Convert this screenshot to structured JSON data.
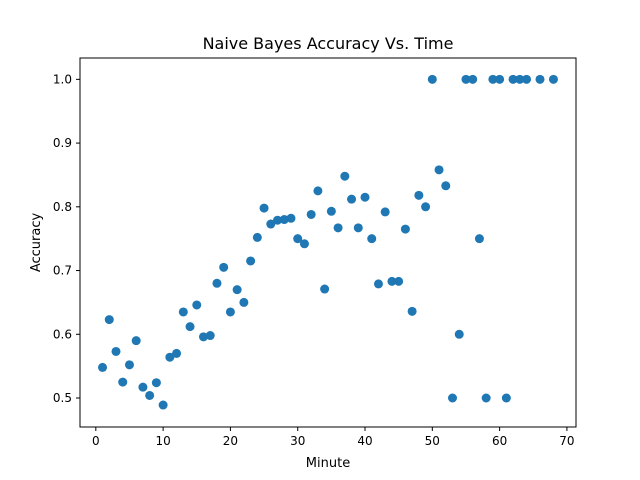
{
  "chart_data": {
    "type": "scatter",
    "title": "Naive Bayes Accuracy Vs. Time",
    "xlabel": "Minute",
    "ylabel": "Accuracy",
    "xlim": [
      -2.35,
      71.35
    ],
    "ylim": [
      0.4545,
      1.0335
    ],
    "xticks": [
      0,
      10,
      20,
      30,
      40,
      50,
      60,
      70
    ],
    "xtick_labels": [
      "0",
      "10",
      "20",
      "30",
      "40",
      "50",
      "60",
      "70"
    ],
    "yticks": [
      0.5,
      0.6,
      0.7,
      0.8,
      0.9,
      1.0
    ],
    "ytick_labels": [
      "0.5",
      "0.6",
      "0.7",
      "0.8",
      "0.9",
      "1.0"
    ],
    "grid": false,
    "marker_color": "#1f77b4",
    "series": [
      {
        "name": "accuracy",
        "points": [
          [
            1,
            0.548
          ],
          [
            2,
            0.623
          ],
          [
            3,
            0.573
          ],
          [
            4,
            0.525
          ],
          [
            5,
            0.552
          ],
          [
            6,
            0.59
          ],
          [
            7,
            0.517
          ],
          [
            8,
            0.504
          ],
          [
            9,
            0.524
          ],
          [
            10,
            0.489
          ],
          [
            11,
            0.564
          ],
          [
            12,
            0.57
          ],
          [
            13,
            0.635
          ],
          [
            14,
            0.612
          ],
          [
            15,
            0.646
          ],
          [
            16,
            0.596
          ],
          [
            17,
            0.598
          ],
          [
            18,
            0.68
          ],
          [
            19,
            0.705
          ],
          [
            20,
            0.635
          ],
          [
            21,
            0.67
          ],
          [
            22,
            0.65
          ],
          [
            23,
            0.715
          ],
          [
            24,
            0.752
          ],
          [
            25,
            0.798
          ],
          [
            26,
            0.773
          ],
          [
            27,
            0.779
          ],
          [
            28,
            0.78
          ],
          [
            29,
            0.782
          ],
          [
            30,
            0.75
          ],
          [
            31,
            0.742
          ],
          [
            32,
            0.788
          ],
          [
            33,
            0.825
          ],
          [
            34,
            0.671
          ],
          [
            35,
            0.793
          ],
          [
            36,
            0.767
          ],
          [
            37,
            0.848
          ],
          [
            38,
            0.812
          ],
          [
            39,
            0.767
          ],
          [
            40,
            0.815
          ],
          [
            41,
            0.75
          ],
          [
            42,
            0.679
          ],
          [
            43,
            0.792
          ],
          [
            44,
            0.683
          ],
          [
            45,
            0.683
          ],
          [
            46,
            0.765
          ],
          [
            47,
            0.636
          ],
          [
            48,
            0.818
          ],
          [
            49,
            0.8
          ],
          [
            50,
            1.0
          ],
          [
            51,
            0.858
          ],
          [
            52,
            0.833
          ],
          [
            53,
            0.5
          ],
          [
            54,
            0.6
          ],
          [
            55,
            1.0
          ],
          [
            56,
            1.0
          ],
          [
            57,
            0.75
          ],
          [
            58,
            0.5
          ],
          [
            59,
            1.0
          ],
          [
            60,
            1.0
          ],
          [
            61,
            0.5
          ],
          [
            62,
            1.0
          ],
          [
            63,
            1.0
          ],
          [
            64,
            1.0
          ],
          [
            66,
            1.0
          ],
          [
            68,
            1.0
          ]
        ]
      }
    ]
  }
}
